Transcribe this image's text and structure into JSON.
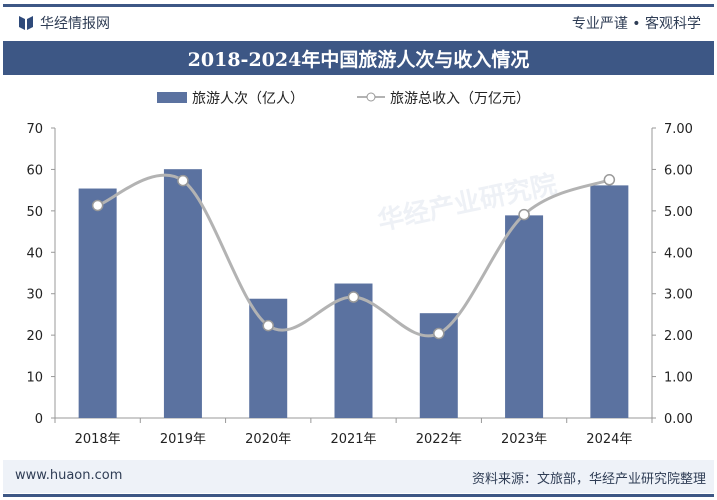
{
  "header": {
    "brand": "华经情报网",
    "slogan": "专业严谨 • 客观科学",
    "logo_icon": "huajing-logo-icon"
  },
  "footer": {
    "url": "www.huaon.com",
    "source": "资料来源：文旅部，华经产业研究院整理"
  },
  "watermark": "华经产业研究院 www.huaon.com",
  "colors": {
    "bar": "#5b72a0",
    "line": "#b3b3b3",
    "title_bg": "#3d5785"
  },
  "chart_data": {
    "type": "bar+line",
    "title": "2018-2024年中国旅游人次与收入情况",
    "categories": [
      "2018年",
      "2019年",
      "2020年",
      "2021年",
      "2022年",
      "2023年",
      "2024年"
    ],
    "series": [
      {
        "name": "旅游人次（亿人）",
        "type": "bar",
        "axis": "left",
        "values": [
          55.39,
          60.06,
          28.79,
          32.46,
          25.3,
          48.91,
          56.15
        ]
      },
      {
        "name": "旅游总收入（万亿元）",
        "type": "line",
        "axis": "right",
        "smooth": true,
        "values": [
          5.13,
          5.73,
          2.23,
          2.92,
          2.04,
          4.91,
          5.75
        ]
      }
    ],
    "y_left": {
      "range": [
        0,
        70
      ],
      "ticks": [
        "0",
        "10",
        "20",
        "30",
        "40",
        "50",
        "60",
        "70"
      ]
    },
    "y_right": {
      "range": [
        0,
        7
      ],
      "ticks": [
        "0.00",
        "1.00",
        "2.00",
        "3.00",
        "4.00",
        "5.00",
        "6.00",
        "7.00"
      ]
    },
    "grid": false,
    "legend": "top-center"
  }
}
